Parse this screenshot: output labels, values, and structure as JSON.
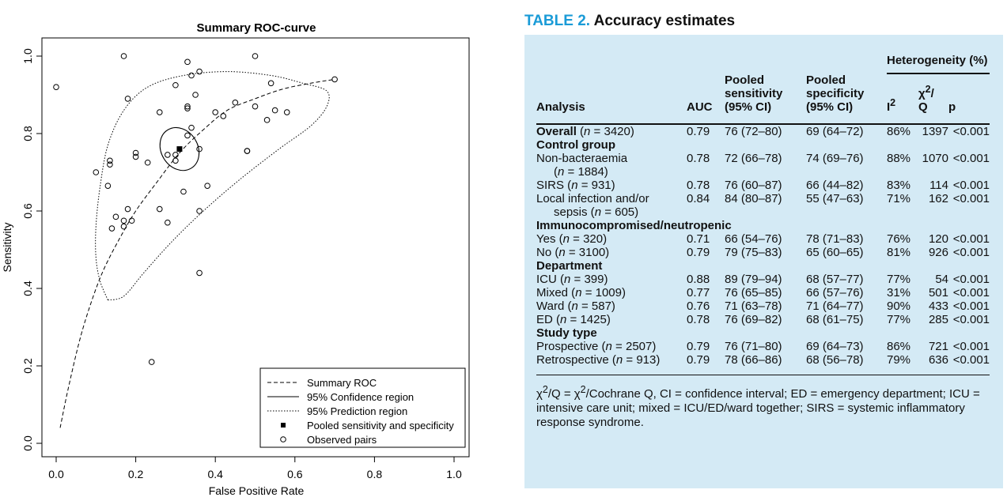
{
  "figure": {
    "chart_data": {
      "type": "scatter",
      "title": "Summary ROC-curve",
      "xlabel": "False Positive Rate",
      "ylabel": "Sensitivity",
      "xlim": [
        0,
        1
      ],
      "ylim": [
        0,
        1
      ],
      "xticks": [
        "0.0",
        "0.2",
        "0.4",
        "0.6",
        "0.8",
        "1.0"
      ],
      "yticks": [
        "0.0",
        "0.2",
        "0.4",
        "0.6",
        "0.8",
        "1.0"
      ],
      "legend_position": "bottom-right",
      "legend": [
        {
          "label": "Summary ROC",
          "marker": "dashed-line"
        },
        {
          "label": "95% Confidence region",
          "marker": "solid-line"
        },
        {
          "label": "95% Prediction region",
          "marker": "dotted-line"
        },
        {
          "label": "Pooled sensitivity and specificity",
          "marker": "filled-square"
        },
        {
          "label": "Observed pairs",
          "marker": "open-circle"
        }
      ],
      "pooled_point": {
        "x": 0.31,
        "y": 0.76
      },
      "summary_roc": [
        [
          0.01,
          0.04
        ],
        [
          0.03,
          0.14
        ],
        [
          0.06,
          0.27
        ],
        [
          0.09,
          0.37
        ],
        [
          0.12,
          0.45
        ],
        [
          0.16,
          0.53
        ],
        [
          0.2,
          0.6
        ],
        [
          0.25,
          0.67
        ],
        [
          0.31,
          0.75
        ],
        [
          0.37,
          0.81
        ],
        [
          0.43,
          0.86
        ],
        [
          0.5,
          0.89
        ],
        [
          0.57,
          0.915
        ],
        [
          0.64,
          0.93
        ],
        [
          0.7,
          0.94
        ]
      ],
      "confidence_region": {
        "cx": 0.31,
        "cy": 0.76,
        "rx": 0.046,
        "ry": 0.058,
        "tilt": 0.55
      },
      "prediction_region": [
        [
          0.13,
          0.37
        ],
        [
          0.11,
          0.42
        ],
        [
          0.1,
          0.48
        ],
        [
          0.1,
          0.56
        ],
        [
          0.11,
          0.66
        ],
        [
          0.13,
          0.77
        ],
        [
          0.17,
          0.86
        ],
        [
          0.23,
          0.92
        ],
        [
          0.32,
          0.95
        ],
        [
          0.43,
          0.96
        ],
        [
          0.54,
          0.95
        ],
        [
          0.62,
          0.93
        ],
        [
          0.68,
          0.91
        ],
        [
          0.68,
          0.87
        ],
        [
          0.64,
          0.82
        ],
        [
          0.56,
          0.76
        ],
        [
          0.46,
          0.68
        ],
        [
          0.37,
          0.6
        ],
        [
          0.29,
          0.52
        ],
        [
          0.22,
          0.44
        ],
        [
          0.17,
          0.38
        ],
        [
          0.13,
          0.37
        ]
      ],
      "series": [
        {
          "name": "Observed pairs",
          "points": [
            [
              0.0,
              0.92
            ],
            [
              0.17,
              1.0
            ],
            [
              0.5,
              1.0
            ],
            [
              0.33,
              0.985
            ],
            [
              0.36,
              0.96
            ],
            [
              0.34,
              0.95
            ],
            [
              0.3,
              0.925
            ],
            [
              0.54,
              0.93
            ],
            [
              0.7,
              0.94
            ],
            [
              0.18,
              0.89
            ],
            [
              0.35,
              0.9
            ],
            [
              0.45,
              0.88
            ],
            [
              0.33,
              0.87
            ],
            [
              0.33,
              0.865
            ],
            [
              0.5,
              0.87
            ],
            [
              0.4,
              0.855
            ],
            [
              0.42,
              0.845
            ],
            [
              0.55,
              0.86
            ],
            [
              0.58,
              0.855
            ],
            [
              0.26,
              0.855
            ],
            [
              0.53,
              0.835
            ],
            [
              0.34,
              0.815
            ],
            [
              0.33,
              0.795
            ],
            [
              0.48,
              0.755
            ],
            [
              0.48,
              0.755
            ],
            [
              0.36,
              0.76
            ],
            [
              0.2,
              0.75
            ],
            [
              0.2,
              0.74
            ],
            [
              0.28,
              0.745
            ],
            [
              0.3,
              0.745
            ],
            [
              0.3,
              0.73
            ],
            [
              0.23,
              0.725
            ],
            [
              0.135,
              0.73
            ],
            [
              0.135,
              0.72
            ],
            [
              0.1,
              0.7
            ],
            [
              0.13,
              0.665
            ],
            [
              0.38,
              0.665
            ],
            [
              0.32,
              0.65
            ],
            [
              0.36,
              0.6
            ],
            [
              0.26,
              0.605
            ],
            [
              0.18,
              0.605
            ],
            [
              0.15,
              0.585
            ],
            [
              0.17,
              0.575
            ],
            [
              0.19,
              0.575
            ],
            [
              0.28,
              0.57
            ],
            [
              0.17,
              0.56
            ],
            [
              0.14,
              0.555
            ],
            [
              0.36,
              0.44
            ],
            [
              0.24,
              0.21
            ]
          ]
        }
      ]
    }
  },
  "table": {
    "title_label": "TABLE 2.",
    "title_text": "Accuracy estimates",
    "head": {
      "heterogeneity": "Heterogeneity (%)",
      "analysis": "Analysis",
      "auc": "AUC",
      "sens_1": "Pooled",
      "sens_2": "sensitivity",
      "sens_3": "(95% CI)",
      "spec_1": "Pooled",
      "spec_2": "specificity",
      "spec_3": "(95% CI)",
      "i2": "I",
      "i2_sup": "2",
      "chi_1": "χ",
      "chi_sup": "2",
      "chi_2": "/",
      "chi_3": "Q",
      "p": "p"
    },
    "rows": [
      {
        "label": "Overall",
        "n_pre": " (",
        "n_var": "n",
        "n_post": " = 3420)",
        "auc": "0.79",
        "sens": "76 (72–80)",
        "spec": "69 (64–72)",
        "i2": "86%",
        "q": "1397",
        "p": "<0.001"
      },
      {
        "section": "Control group"
      },
      {
        "label": "Non-bacteraemia",
        "label_line2_pre": "(",
        "n_var": "n",
        "label_line2_post": " = 1884)",
        "auc": "0.78",
        "sens": "72 (66–78)",
        "spec": "74 (69–76)",
        "i2": "88%",
        "q": "1070",
        "p": "<0.001"
      },
      {
        "label": "SIRS",
        "n_pre": " (",
        "n_var": "n",
        "n_post": " = 931)",
        "auc": "0.78",
        "sens": "76 (60–87)",
        "spec": "66 (44–82)",
        "i2": "83%",
        "q": "114",
        "p": "<0.001"
      },
      {
        "label": "Local infection and/or",
        "label_line2_pre": "sepsis (",
        "n_var": "n",
        "label_line2_post": " = 605)",
        "auc": "0.84",
        "sens": "84 (80–87)",
        "spec": "55 (47–63)",
        "i2": "71%",
        "q": "162",
        "p": "<0.001"
      },
      {
        "section": "Immunocompromised/neutropenic"
      },
      {
        "label": "Yes",
        "n_pre": " (",
        "n_var": "n",
        "n_post": " = 320)",
        "auc": "0.71",
        "sens": "66 (54–76)",
        "spec": "78 (71–83)",
        "i2": "76%",
        "q": "120",
        "p": "<0.001"
      },
      {
        "label": "No",
        "n_pre": " (",
        "n_var": "n",
        "n_post": " = 3100)",
        "auc": "0.79",
        "sens": "79 (75–83)",
        "spec": "65 (60–65)",
        "i2": "81%",
        "q": "926",
        "p": "<0.001"
      },
      {
        "section": "Department"
      },
      {
        "label": "ICU",
        "n_pre": " (",
        "n_var": "n",
        "n_post": " = 399)",
        "auc": "0.88",
        "sens": "89 (79–94)",
        "spec": "68 (57–77)",
        "i2": "77%",
        "q": "54",
        "p": "<0.001"
      },
      {
        "label": "Mixed",
        "n_pre": " (",
        "n_var": "n",
        "n_post": " = 1009)",
        "auc": "0.77",
        "sens": "76 (65–85)",
        "spec": "66 (57–76)",
        "i2": "31%",
        "q": "501",
        "p": "<0.001"
      },
      {
        "label": "Ward",
        "n_pre": " (",
        "n_var": "n",
        "n_post": " = 587)",
        "auc": "0.76",
        "sens": "71 (63–78)",
        "spec": "71 (64–77)",
        "i2": "90%",
        "q": "433",
        "p": "<0.001"
      },
      {
        "label": "ED",
        "n_pre": " (",
        "n_var": "n",
        "n_post": " = 1425)",
        "auc": "0.78",
        "sens": "76 (69–82)",
        "spec": "68 (61–75)",
        "i2": "77%",
        "q": "285",
        "p": "<0.001"
      },
      {
        "section": "Study type"
      },
      {
        "label": "Prospective",
        "n_pre": " (",
        "n_var": "n",
        "n_post": " = 2507)",
        "auc": "0.79",
        "sens": "76 (71–80)",
        "spec": "69 (64–73)",
        "i2": "86%",
        "q": "721",
        "p": "<0.001"
      },
      {
        "label": "Retrospective",
        "n_pre": " (",
        "n_var": "n",
        "n_post": " = 913)",
        "auc": "0.79",
        "sens": "78 (66–86)",
        "spec": "68 (56–78)",
        "i2": "79%",
        "q": "636",
        "p": "<0.001"
      }
    ],
    "footnote": {
      "chi": "χ",
      "sup": "2",
      "mid": "/Q = ",
      "chi2": "χ",
      "sup2": "2",
      "text": "/Cochrane Q, CI = confidence interval; ED = emergency department; ICU = intensive care unit; mixed = ICU/ED/ward together; SIRS = systemic inflammatory response syndrome."
    }
  },
  "colors": {
    "title_accent": "#1a9bd7",
    "panel_bg": "#d4eaf5"
  }
}
